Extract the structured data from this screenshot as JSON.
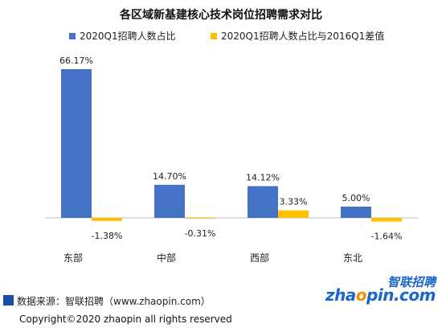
{
  "chart_data": {
    "type": "bar",
    "title": "各区域新基建核心技术岗位招聘需求对比",
    "categories": [
      "东部",
      "中部",
      "西部",
      "东北"
    ],
    "series": [
      {
        "name": "2020Q1招聘人数占比",
        "values": [
          66.17,
          14.7,
          14.12,
          5.0
        ],
        "labels": [
          "66.17%",
          "14.70%",
          "14.12%",
          "5.00%"
        ]
      },
      {
        "name": "2020Q1招聘人数占比与2016Q1差值",
        "values": [
          -1.38,
          -0.31,
          3.33,
          -1.64
        ],
        "labels": [
          "-1.38%",
          "-0.31%",
          "3.33%",
          "-1.64%"
        ]
      }
    ],
    "xlabel": "",
    "ylabel": "",
    "ylim": [
      -2,
      70
    ],
    "grid": false,
    "legend": "top"
  },
  "colors": {
    "series1": "#4472c4",
    "series2": "#ffc000",
    "axis": "#bfbfbf",
    "source_square": "#1e4aa8",
    "logo_blue": "#1a66c9",
    "logo_orange": "#ff8a00"
  },
  "footer": {
    "source": "数据来源：智联招聘（www.zhaopin.com）",
    "copyright": "Copyright©2020 zhaopin all rights reserved"
  },
  "logo": {
    "cn": "智联招聘",
    "en_pre": "zha",
    "en_o": "o",
    "en_post": "pin.com"
  }
}
